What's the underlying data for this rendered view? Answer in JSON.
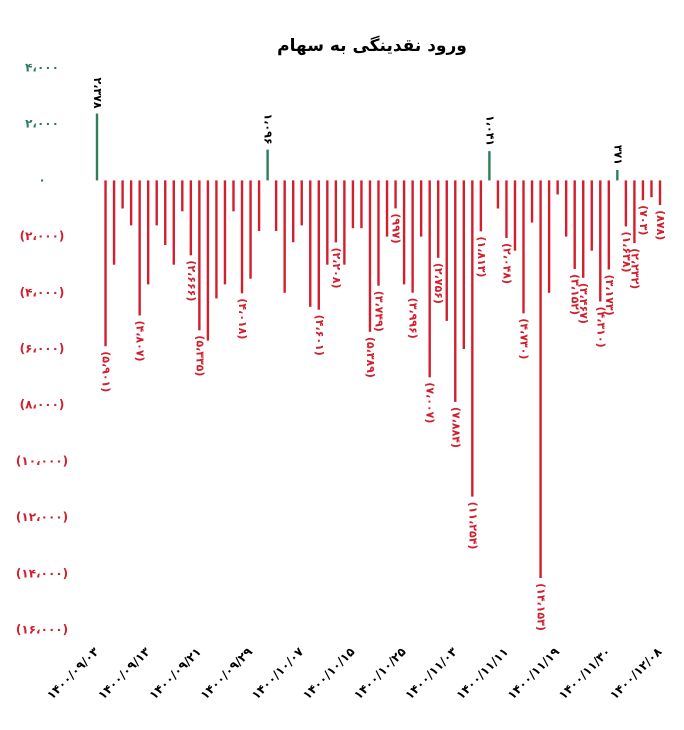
{
  "chart_data": {
    "type": "bar",
    "title": "ورود نقدینگی به سهام",
    "colors": {
      "positive": "#2e7d5b",
      "negative": "#d21f2d"
    },
    "ylim": [
      -16000,
      4000
    ],
    "yticks": [
      {
        "value": 4000,
        "label": "۴،۰۰۰"
      },
      {
        "value": 2000,
        "label": "۲،۰۰۰"
      },
      {
        "value": 0,
        "label": "۰"
      },
      {
        "value": -2000,
        "label": "(۲،۰۰۰)"
      },
      {
        "value": -4000,
        "label": "(۴،۰۰۰)"
      },
      {
        "value": -6000,
        "label": "(۶،۰۰۰)"
      },
      {
        "value": -8000,
        "label": "(۸،۰۰۰)"
      },
      {
        "value": -10000,
        "label": "(۱۰،۰۰۰)"
      },
      {
        "value": -12000,
        "label": "(۱۲،۰۰۰)"
      },
      {
        "value": -14000,
        "label": "(۱۴،۰۰۰)"
      },
      {
        "value": -16000,
        "label": "(۱۶،۰۰۰)"
      }
    ],
    "categories": [
      "۱۴۰۰/۰۹/۰۳",
      null,
      null,
      null,
      null,
      null,
      "۱۴۰۰/۰۹/۱۳",
      null,
      null,
      null,
      null,
      null,
      "۱۴۰۰/۰۹/۲۱",
      null,
      null,
      null,
      null,
      null,
      "۱۴۰۰/۰۹/۲۹",
      null,
      null,
      null,
      null,
      null,
      "۱۴۰۰/۱۰/۰۷",
      null,
      null,
      null,
      null,
      null,
      "۱۴۰۰/۱۰/۱۵",
      null,
      null,
      null,
      null,
      null,
      "۱۴۰۰/۱۰/۲۵",
      null,
      null,
      null,
      null,
      null,
      "۱۴۰۰/۱۱/۰۳",
      null,
      null,
      null,
      null,
      null,
      "۱۴۰۰/۱۱/۱۱",
      null,
      null,
      null,
      null,
      null,
      "۱۴۰۰/۱۱/۱۹",
      null,
      null,
      null,
      null,
      null,
      "۱۴۰۰/۱۱/۳۰",
      null,
      null,
      null,
      null,
      null,
      "۱۴۰۰/۱۲/۰۸"
    ],
    "values": [
      2378,
      -5901,
      -3000,
      -1000,
      -1600,
      -4807,
      -3700,
      -1600,
      -2300,
      -3000,
      -1100,
      -2666,
      -5335,
      -5700,
      -4200,
      -3700,
      -1100,
      -4018,
      -3500,
      -1800,
      1096,
      -1800,
      -4000,
      -2200,
      -1600,
      -4500,
      -4601,
      -3000,
      -2208,
      -3000,
      -1700,
      -1700,
      -5389,
      -3749,
      -2000,
      -997,
      -3700,
      -3996,
      -2000,
      -7007,
      -2756,
      -5000,
      -7884,
      -6000,
      -11254,
      -1813,
      1041,
      -1000,
      -2048,
      -2500,
      -4730,
      -1500,
      -14153,
      -4000,
      -500,
      -2000,
      -3152,
      -3467,
      -2500,
      -4310,
      -3173,
      371,
      -1638,
      -2232,
      -703,
      -600,
      -878
    ],
    "value_labels": [
      "۲،۳۷۸",
      "(۵،۹۰۱)",
      null,
      null,
      null,
      "(۴،۸۰۷)",
      null,
      null,
      null,
      null,
      null,
      "(۲،۶۶۶)",
      "(۵،۳۳۵)",
      null,
      null,
      null,
      null,
      "(۴،۰۱۸)",
      null,
      null,
      "۱،۰۹۶",
      null,
      null,
      null,
      null,
      null,
      "(۴،۶۰۱)",
      null,
      "(۲،۲۰۸)",
      null,
      null,
      null,
      "(۵،۳۸۹)",
      "(۳،۷۴۹)",
      null,
      "(۹۹۷)",
      null,
      "(۳،۹۹۶)",
      null,
      "(۷،۰۰۷)",
      "(۲،۷۵۶)",
      null,
      "(۷،۸۸۴)",
      null,
      "(۱۱،۲۵۴)",
      "(۱،۸۱۳)",
      "۱،۰۴۱",
      null,
      "(۲،۰۴۸)",
      null,
      "(۴،۷۳۰)",
      null,
      "(۱۴،۱۵۳)",
      null,
      null,
      null,
      "(۳،۱۵۲)",
      "(۳،۴۶۷)",
      null,
      "(۴،۳۱۰)",
      "(۳،۱۷۳)",
      "۳۷۱",
      "(۱،۶۳۸)",
      "(۲،۲۳۲)",
      "(۷۰۳)",
      null,
      "(۸۷۸)"
    ]
  }
}
